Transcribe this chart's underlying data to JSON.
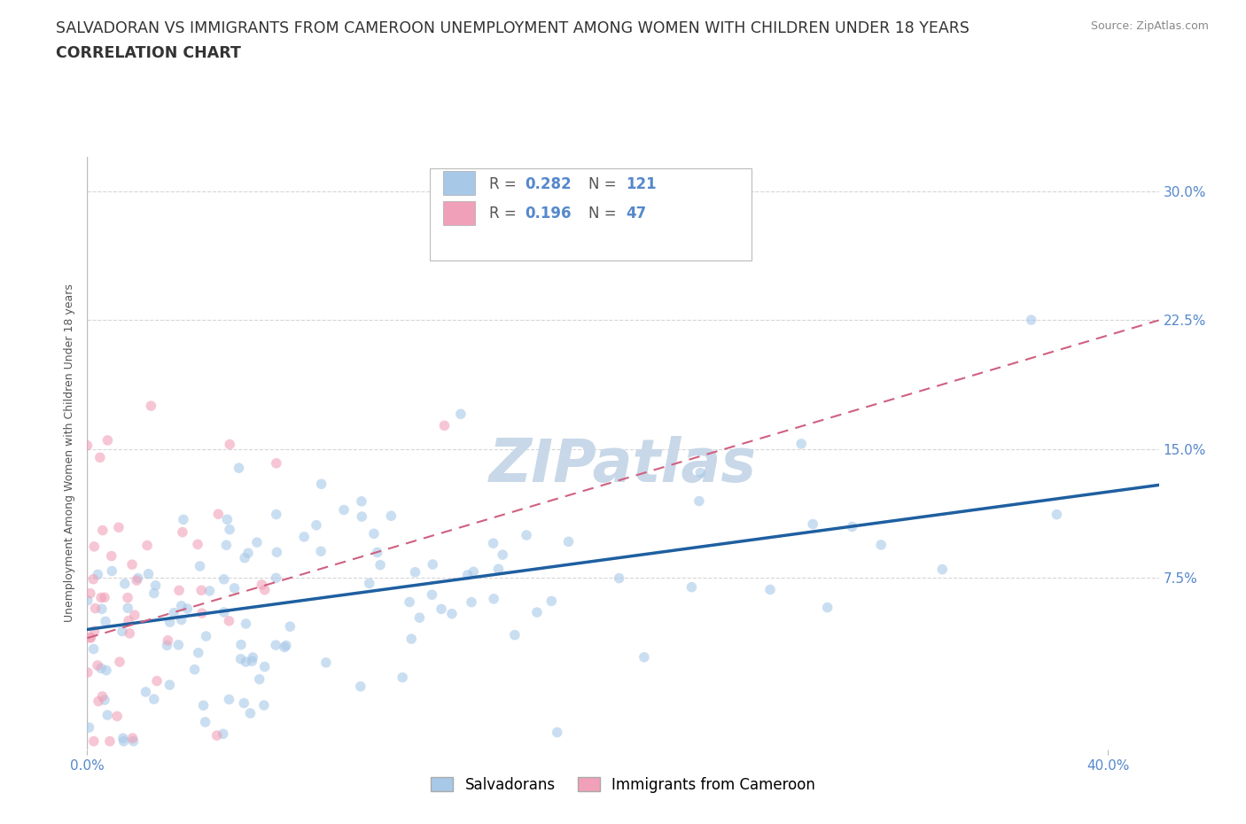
{
  "title_line1": "SALVADORAN VS IMMIGRANTS FROM CAMEROON UNEMPLOYMENT AMONG WOMEN WITH CHILDREN UNDER 18 YEARS",
  "title_line2": "CORRELATION CHART",
  "source": "Source: ZipAtlas.com",
  "ylabel_label": "Unemployment Among Women with Children Under 18 years",
  "legend_labels": [
    "Salvadorans",
    "Immigrants from Cameroon"
  ],
  "R_salvadoran": 0.282,
  "N_salvadoran": 121,
  "R_cameroon": 0.196,
  "N_cameroon": 47,
  "xlim": [
    0.0,
    0.42
  ],
  "ylim": [
    -0.025,
    0.32
  ],
  "title_fontsize": 13,
  "axis_label_fontsize": 9,
  "tick_fontsize": 11,
  "scatter_alpha": 0.6,
  "scatter_size": 70,
  "salvadoran_color": "#A8C8E8",
  "cameroon_color": "#F0A0B8",
  "trend_salvadoran_color": "#1E5FA0",
  "trend_cameroon_color": "#D06080",
  "watermark_color": "#C8D8E8",
  "background_color": "#FFFFFF",
  "grid_color": "#CCCCCC",
  "title_color": "#333333",
  "axis_tick_color": "#5588CC",
  "source_color": "#888888"
}
